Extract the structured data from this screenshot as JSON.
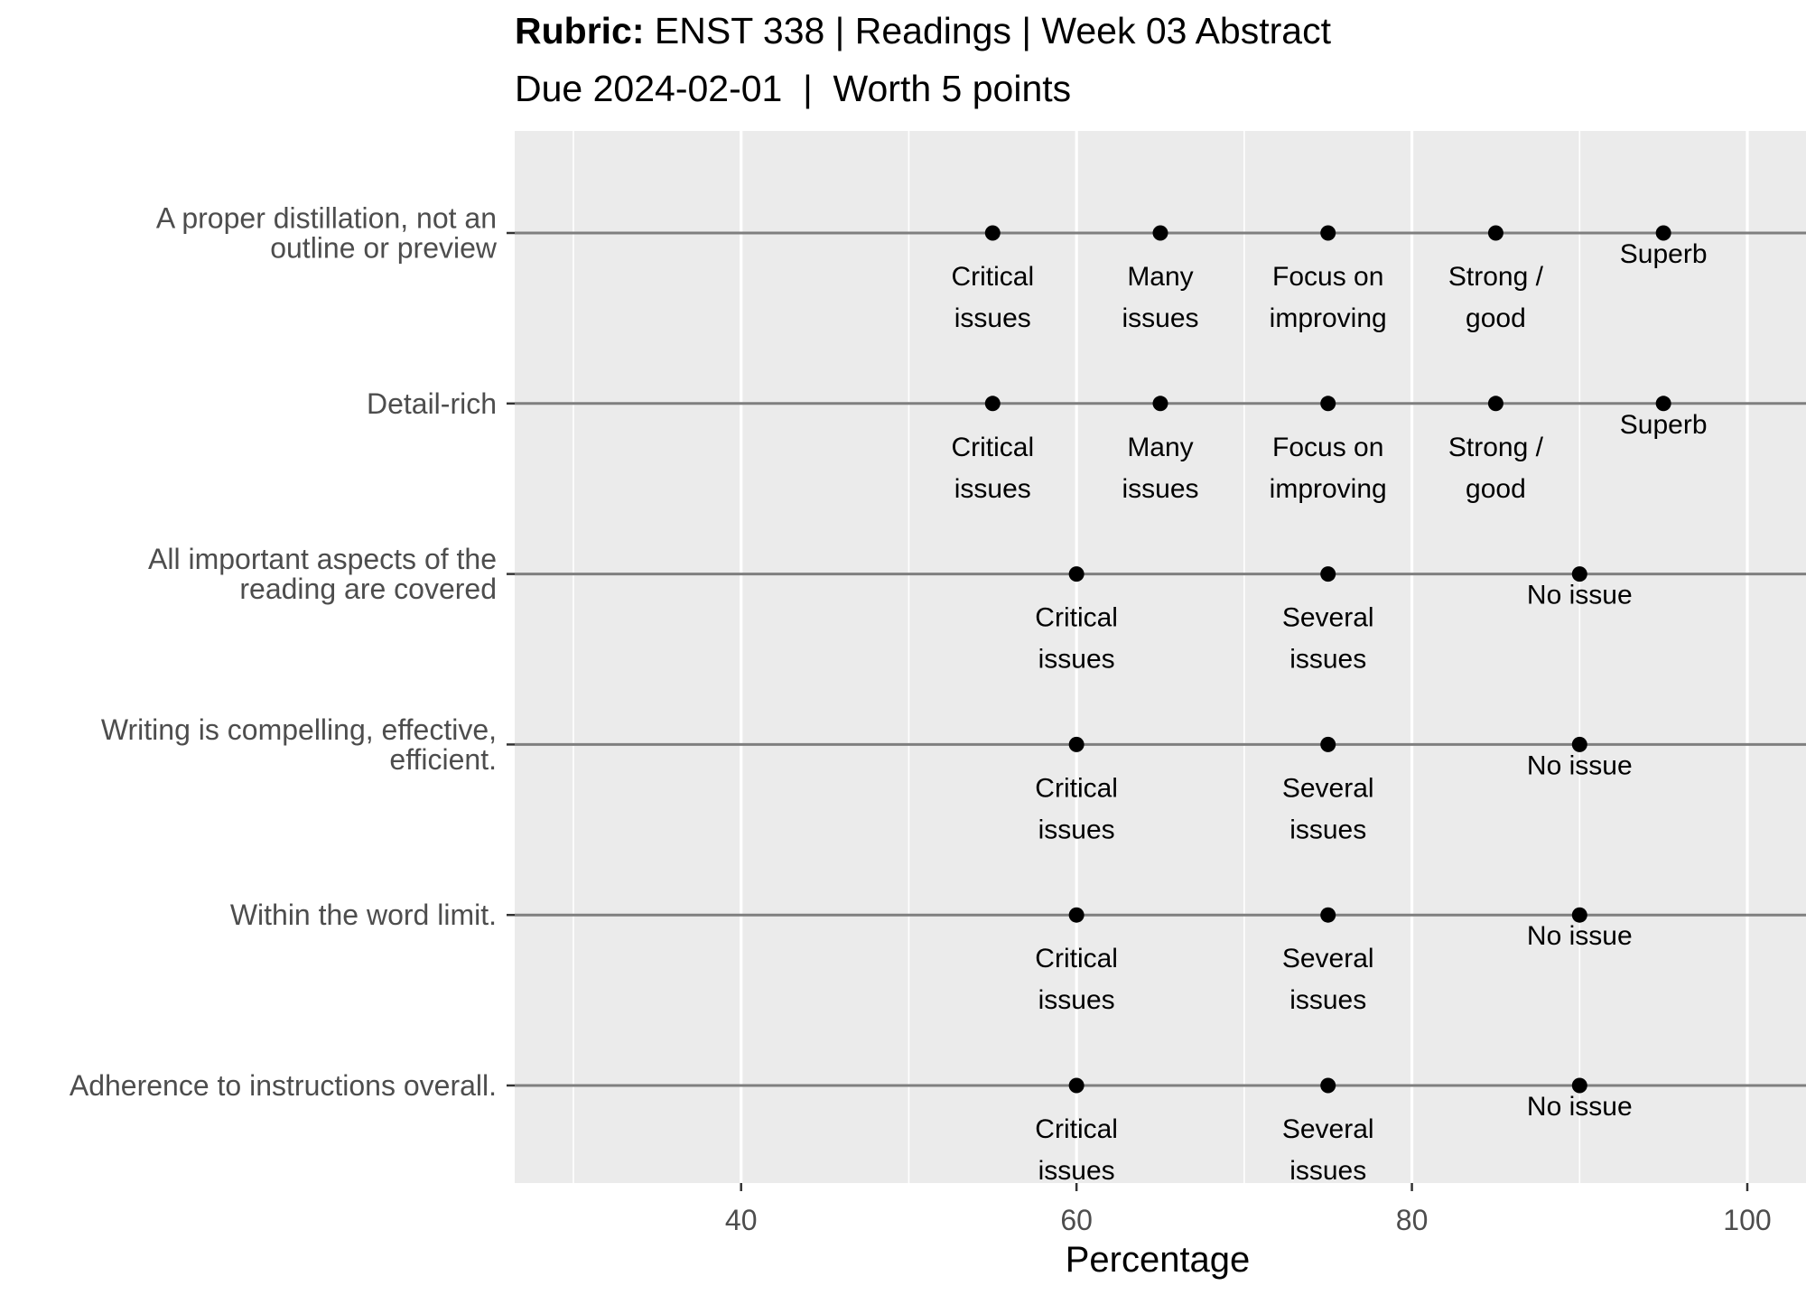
{
  "chart_data": {
    "type": "scatter",
    "title_bold": "Rubric:",
    "title_rest": " ENST 338 | Readings | Week 03 Abstract",
    "subtitle": "Due 2024-02-01  |  Worth 5 points",
    "xlabel": "Percentage",
    "ylabel": "",
    "xlim": [
      26.5,
      103.5
    ],
    "x_ticks": [
      40,
      60,
      80,
      100
    ],
    "x_tick_labels": [
      "40",
      "60",
      "80",
      "100"
    ],
    "x_minor_grid": [
      30,
      50,
      70,
      90
    ],
    "grid": true,
    "rows": [
      {
        "label": [
          "A proper distillation, not an",
          "outline or preview"
        ],
        "points": [
          {
            "x": 55,
            "label": [
              "Critical",
              "issues"
            ]
          },
          {
            "x": 65,
            "label": [
              "Many",
              "issues"
            ]
          },
          {
            "x": 75,
            "label": [
              "Focus on",
              "improving"
            ]
          },
          {
            "x": 85,
            "label": [
              "Strong /",
              "good"
            ]
          },
          {
            "x": 95,
            "label": [
              "Superb"
            ]
          }
        ]
      },
      {
        "label": [
          "Detail-rich"
        ],
        "points": [
          {
            "x": 55,
            "label": [
              "Critical",
              "issues"
            ]
          },
          {
            "x": 65,
            "label": [
              "Many",
              "issues"
            ]
          },
          {
            "x": 75,
            "label": [
              "Focus on",
              "improving"
            ]
          },
          {
            "x": 85,
            "label": [
              "Strong /",
              "good"
            ]
          },
          {
            "x": 95,
            "label": [
              "Superb"
            ]
          }
        ]
      },
      {
        "label": [
          "All important aspects of the",
          "reading are covered"
        ],
        "points": [
          {
            "x": 60,
            "label": [
              "Critical",
              "issues"
            ]
          },
          {
            "x": 75,
            "label": [
              "Several",
              "issues"
            ]
          },
          {
            "x": 90,
            "label": [
              "No issue"
            ]
          }
        ]
      },
      {
        "label": [
          "Writing is compelling, effective,",
          "efficient."
        ],
        "points": [
          {
            "x": 60,
            "label": [
              "Critical",
              "issues"
            ]
          },
          {
            "x": 75,
            "label": [
              "Several",
              "issues"
            ]
          },
          {
            "x": 90,
            "label": [
              "No issue"
            ]
          }
        ]
      },
      {
        "label": [
          "Within the word limit."
        ],
        "points": [
          {
            "x": 60,
            "label": [
              "Critical",
              "issues"
            ]
          },
          {
            "x": 75,
            "label": [
              "Several",
              "issues"
            ]
          },
          {
            "x": 90,
            "label": [
              "No issue"
            ]
          }
        ]
      },
      {
        "label": [
          "Adherence to instructions overall."
        ],
        "points": [
          {
            "x": 60,
            "label": [
              "Critical",
              "issues"
            ]
          },
          {
            "x": 75,
            "label": [
              "Several",
              "issues"
            ]
          },
          {
            "x": 90,
            "label": [
              "No issue"
            ]
          }
        ]
      }
    ],
    "colors": {
      "panel": "#ebebeb",
      "grid": "#ffffff",
      "row_line": "#7f7f7f",
      "point": "#000000"
    }
  }
}
